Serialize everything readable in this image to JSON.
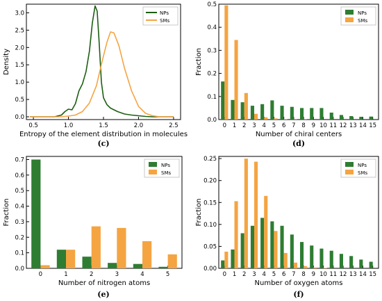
{
  "colors": {
    "NPs": "#2e7d32",
    "SMs": "#f5a442",
    "NPs_line": "#1b5e10"
  },
  "chart_data": [
    {
      "id": "c",
      "type": "line",
      "caption": "(c)",
      "xlabel": "Entropy of the element distribution in molecules",
      "ylabel": "Density",
      "xlim": [
        0.4,
        2.6
      ],
      "ylim": [
        -0.08,
        3.25
      ],
      "xticks": [
        0.5,
        1.0,
        1.5,
        2.0,
        2.5
      ],
      "xtick_labels": [
        "0.5",
        "1.0",
        "1.5",
        "2.0",
        "2.5"
      ],
      "yticks": [
        0.0,
        0.5,
        1.0,
        1.5,
        2.0,
        2.5,
        3.0
      ],
      "ytick_labels": [
        "0.0",
        "0.5",
        "1.0",
        "1.5",
        "2.0",
        "2.5",
        "3.0"
      ],
      "legend_position": "top-right",
      "series": [
        {
          "name": "NPs",
          "x": [
            0.45,
            0.8,
            0.9,
            0.95,
            1.0,
            1.05,
            1.1,
            1.15,
            1.2,
            1.25,
            1.3,
            1.34,
            1.38,
            1.41,
            1.44,
            1.47,
            1.5,
            1.55,
            1.6,
            1.7,
            1.8,
            1.9,
            2.0,
            2.1,
            2.2,
            2.5
          ],
          "y": [
            0.0,
            0.0,
            0.05,
            0.15,
            0.22,
            0.2,
            0.38,
            0.75,
            0.95,
            1.3,
            1.9,
            2.7,
            3.2,
            3.05,
            2.1,
            1.0,
            0.55,
            0.35,
            0.25,
            0.15,
            0.08,
            0.05,
            0.03,
            0.01,
            0.0,
            0.0
          ]
        },
        {
          "name": "SMs",
          "x": [
            0.45,
            0.9,
            1.0,
            1.1,
            1.2,
            1.3,
            1.4,
            1.48,
            1.55,
            1.6,
            1.65,
            1.72,
            1.8,
            1.9,
            2.0,
            2.1,
            2.2,
            2.3,
            2.5
          ],
          "y": [
            0.0,
            0.0,
            0.02,
            0.05,
            0.15,
            0.4,
            0.9,
            1.6,
            2.15,
            2.45,
            2.42,
            2.05,
            1.4,
            0.75,
            0.3,
            0.1,
            0.03,
            0.0,
            0.0
          ]
        }
      ]
    },
    {
      "id": "d",
      "type": "bar",
      "caption": "(d)",
      "xlabel": "Number of chiral centers",
      "ylabel": "Fraction",
      "ylim": [
        0,
        0.5
      ],
      "yticks": [
        0.0,
        0.1,
        0.2,
        0.3,
        0.4,
        0.5
      ],
      "ytick_labels": [
        "0.0",
        "0.1",
        "0.2",
        "0.3",
        "0.4",
        "0.5"
      ],
      "categories": [
        "0",
        "1",
        "2",
        "3",
        "4",
        "5",
        "6",
        "7",
        "8",
        "9",
        "10",
        "11",
        "12",
        "13",
        "14",
        "15"
      ],
      "legend_position": "top-right",
      "series": [
        {
          "name": "NPs",
          "values": [
            0.165,
            0.085,
            0.075,
            0.06,
            0.067,
            0.083,
            0.06,
            0.055,
            0.05,
            0.05,
            0.05,
            0.03,
            0.02,
            0.015,
            0.012,
            0.013
          ]
        },
        {
          "name": "SMs",
          "values": [
            0.495,
            0.345,
            0.115,
            0.025,
            0.01,
            0.005,
            0.002,
            0.001,
            0.001,
            0.0,
            0.0,
            0.0,
            0.0,
            0.0,
            0.0,
            0.0
          ]
        }
      ]
    },
    {
      "id": "e",
      "type": "bar",
      "caption": "(e)",
      "xlabel": "Number of nitrogen atoms",
      "ylabel": "Fraction",
      "ylim": [
        0,
        0.72
      ],
      "yticks": [
        0.0,
        0.1,
        0.2,
        0.3,
        0.4,
        0.5,
        0.6,
        0.7
      ],
      "ytick_labels": [
        "0.0",
        "0.1",
        "0.2",
        "0.3",
        "0.4",
        "0.5",
        "0.6",
        "0.7"
      ],
      "categories": [
        "0",
        "1",
        "2",
        "3",
        "4",
        "5"
      ],
      "legend_position": "top-right",
      "series": [
        {
          "name": "NPs",
          "values": [
            0.7,
            0.12,
            0.075,
            0.035,
            0.028,
            0.01
          ]
        },
        {
          "name": "SMs",
          "values": [
            0.02,
            0.12,
            0.27,
            0.26,
            0.175,
            0.09
          ]
        }
      ]
    },
    {
      "id": "f",
      "type": "bar",
      "caption": "(f)",
      "xlabel": "Number of oxygen atoms",
      "ylabel": "Fraction",
      "ylim": [
        0,
        0.255
      ],
      "yticks": [
        0.0,
        0.05,
        0.1,
        0.15,
        0.2,
        0.25
      ],
      "ytick_labels": [
        "0.00",
        "0.05",
        "0.10",
        "0.15",
        "0.20",
        "0.25"
      ],
      "categories": [
        "0",
        "1",
        "2",
        "3",
        "4",
        "5",
        "6",
        "7",
        "8",
        "9",
        "10",
        "11",
        "12",
        "13",
        "14",
        "15"
      ],
      "legend_position": "top-right",
      "series": [
        {
          "name": "NPs",
          "values": [
            0.018,
            0.043,
            0.08,
            0.097,
            0.115,
            0.107,
            0.097,
            0.077,
            0.06,
            0.052,
            0.045,
            0.04,
            0.033,
            0.028,
            0.02,
            0.015
          ]
        },
        {
          "name": "SMs",
          "values": [
            0.038,
            0.153,
            0.25,
            0.243,
            0.165,
            0.085,
            0.035,
            0.013,
            0.005,
            0.002,
            0.001,
            0.0,
            0.0,
            0.0,
            0.0,
            0.0
          ]
        }
      ]
    }
  ]
}
